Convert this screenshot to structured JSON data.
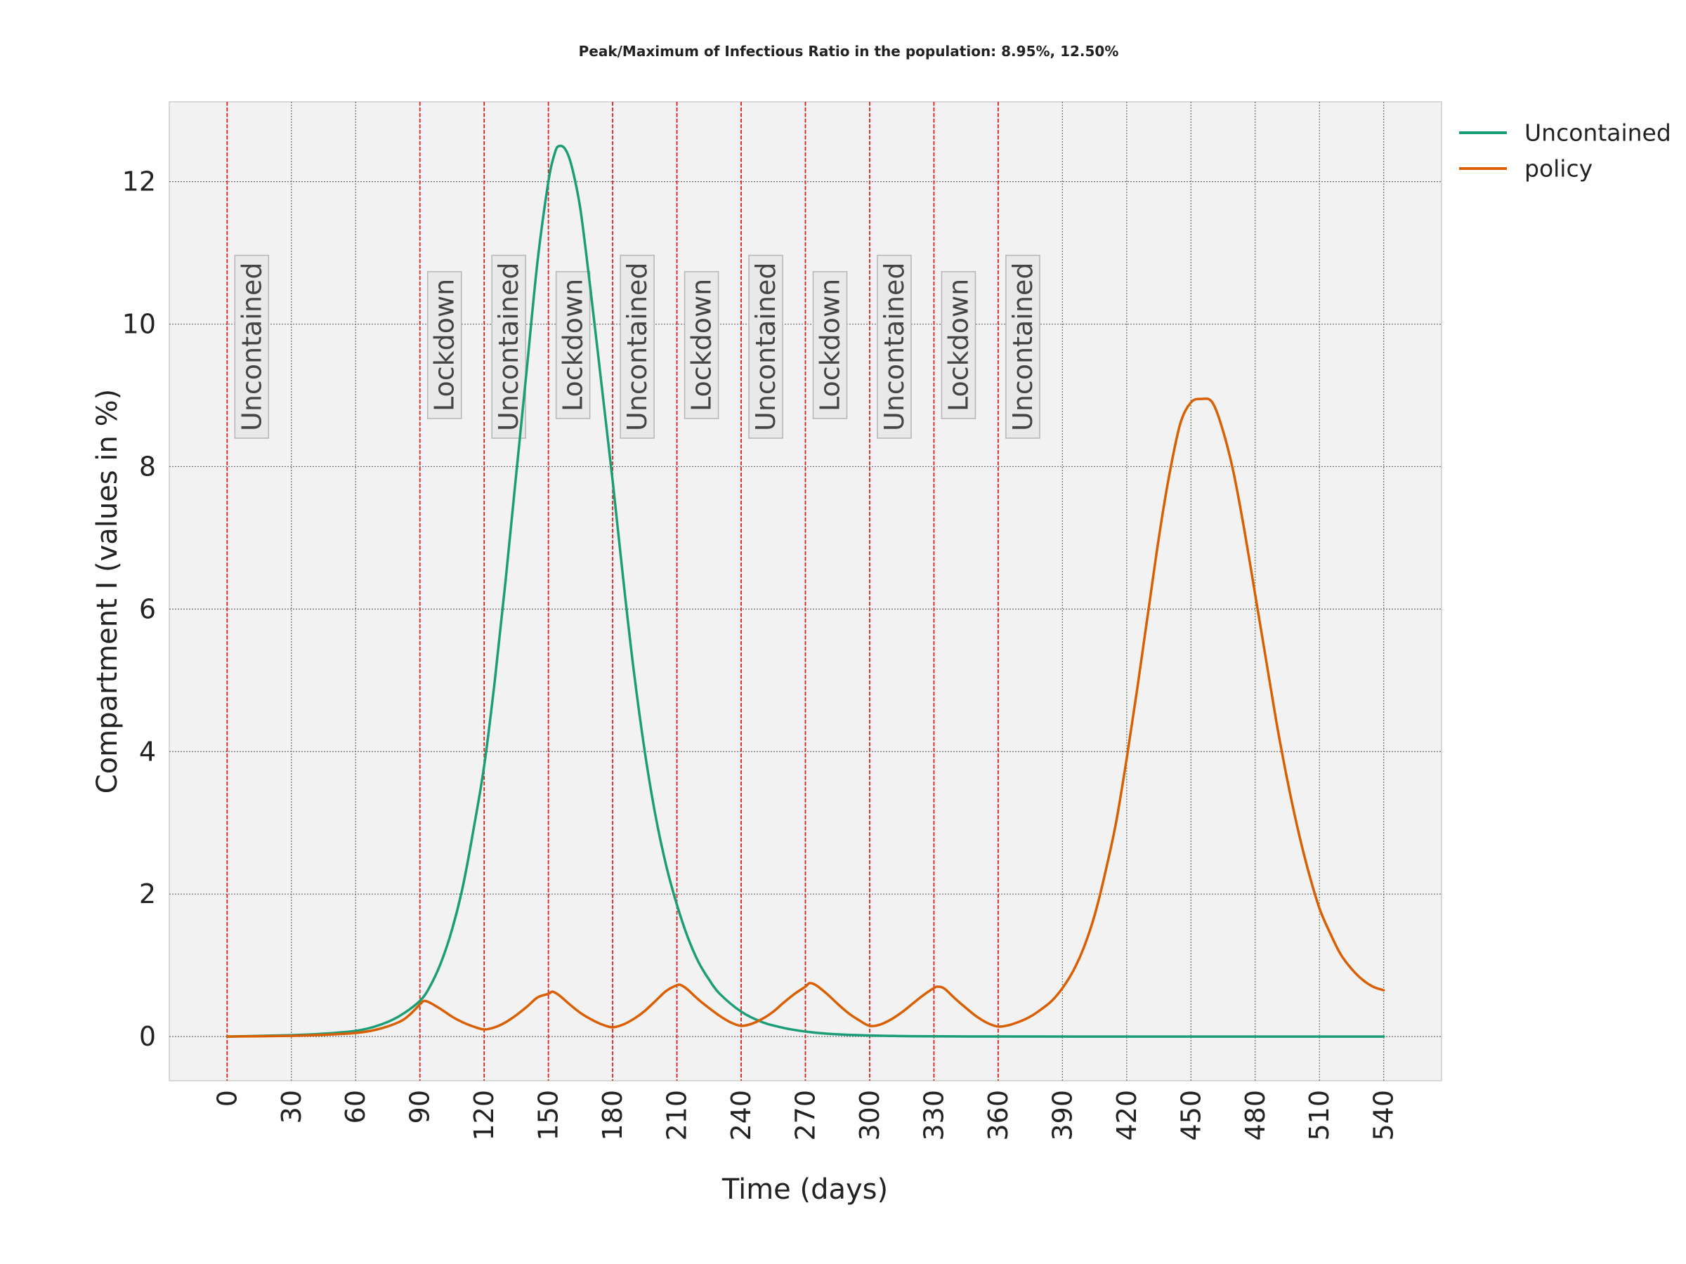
{
  "chart_data": {
    "type": "line",
    "title": "Peak/Maximum of Infectious Ratio in the population: 8.95%, 12.50%",
    "xlabel": "Time (days)",
    "ylabel": "Compartment I (values in %)",
    "xlim": [
      -27,
      567
    ],
    "ylim": [
      -0.62,
      13.12
    ],
    "xticks": [
      0,
      30,
      60,
      90,
      120,
      150,
      180,
      210,
      240,
      270,
      300,
      330,
      360,
      390,
      420,
      450,
      480,
      510,
      540
    ],
    "xtick_labels": [
      "0",
      "30",
      "60",
      "90",
      "120",
      "150",
      "180",
      "210",
      "240",
      "270",
      "300",
      "330",
      "360",
      "390",
      "420",
      "450",
      "480",
      "510",
      "540"
    ],
    "yticks": [
      0,
      2,
      4,
      6,
      8,
      10,
      12
    ],
    "ytick_labels": [
      "0",
      "2",
      "4",
      "6",
      "8",
      "10",
      "12"
    ],
    "grid": true,
    "legend_position": "outside-top-right",
    "background_color": "#f2f2f2",
    "phase_line_color": "#e0201a",
    "phases": [
      {
        "x": 0,
        "label": "Uncontained"
      },
      {
        "x": 90,
        "label": "Lockdown"
      },
      {
        "x": 120,
        "label": "Uncontained"
      },
      {
        "x": 150,
        "label": "Lockdown"
      },
      {
        "x": 180,
        "label": "Uncontained"
      },
      {
        "x": 210,
        "label": "Lockdown"
      },
      {
        "x": 240,
        "label": "Uncontained"
      },
      {
        "x": 270,
        "label": "Lockdown"
      },
      {
        "x": 300,
        "label": "Uncontained"
      },
      {
        "x": 330,
        "label": "Lockdown"
      },
      {
        "x": 360,
        "label": "Uncontained"
      }
    ],
    "series": [
      {
        "name": "Uncontained",
        "color": "#1b9e77",
        "x": [
          0,
          30,
          45,
          60,
          70,
          80,
          90,
          95,
          100,
          105,
          110,
          115,
          120,
          125,
          130,
          135,
          140,
          145,
          150,
          153,
          155,
          158,
          161,
          165,
          170,
          175,
          180,
          185,
          190,
          195,
          200,
          205,
          210,
          215,
          220,
          225,
          230,
          240,
          250,
          260,
          270,
          280,
          290,
          300,
          320,
          340,
          360,
          400,
          450,
          500,
          540
        ],
        "y": [
          0.0,
          0.02,
          0.04,
          0.08,
          0.15,
          0.28,
          0.5,
          0.72,
          1.05,
          1.5,
          2.1,
          2.9,
          3.8,
          5.0,
          6.4,
          7.9,
          9.4,
          10.9,
          12.0,
          12.4,
          12.5,
          12.45,
          12.2,
          11.6,
          10.4,
          9.1,
          7.8,
          6.4,
          5.1,
          4.0,
          3.1,
          2.4,
          1.85,
          1.4,
          1.05,
          0.8,
          0.6,
          0.35,
          0.2,
          0.12,
          0.07,
          0.04,
          0.025,
          0.015,
          0.005,
          0.002,
          0.001,
          0.0,
          0.0,
          0.0,
          0.0
        ]
      },
      {
        "name": "policy",
        "color": "#d95f02",
        "x": [
          0,
          30,
          45,
          60,
          70,
          80,
          85,
          90,
          92,
          95,
          100,
          105,
          110,
          115,
          120,
          125,
          130,
          135,
          140,
          145,
          150,
          152,
          155,
          160,
          165,
          170,
          175,
          180,
          185,
          190,
          195,
          200,
          205,
          210,
          212,
          215,
          220,
          225,
          230,
          235,
          240,
          245,
          250,
          255,
          260,
          265,
          270,
          272,
          275,
          280,
          285,
          290,
          295,
          300,
          305,
          310,
          315,
          320,
          325,
          330,
          332,
          335,
          340,
          345,
          350,
          355,
          360,
          365,
          370,
          375,
          380,
          385,
          390,
          395,
          400,
          405,
          410,
          415,
          420,
          425,
          430,
          435,
          440,
          445,
          450,
          455,
          460,
          465,
          470,
          475,
          480,
          485,
          490,
          495,
          500,
          505,
          510,
          515,
          520,
          525,
          530,
          535,
          540
        ],
        "y": [
          0.0,
          0.01,
          0.025,
          0.05,
          0.1,
          0.2,
          0.3,
          0.45,
          0.5,
          0.47,
          0.38,
          0.28,
          0.2,
          0.14,
          0.1,
          0.13,
          0.2,
          0.3,
          0.42,
          0.55,
          0.6,
          0.63,
          0.58,
          0.45,
          0.33,
          0.24,
          0.17,
          0.13,
          0.17,
          0.25,
          0.36,
          0.5,
          0.64,
          0.72,
          0.72,
          0.66,
          0.52,
          0.4,
          0.29,
          0.2,
          0.15,
          0.18,
          0.25,
          0.35,
          0.48,
          0.6,
          0.7,
          0.75,
          0.72,
          0.6,
          0.46,
          0.33,
          0.23,
          0.15,
          0.17,
          0.24,
          0.34,
          0.46,
          0.58,
          0.68,
          0.7,
          0.67,
          0.53,
          0.4,
          0.28,
          0.19,
          0.14,
          0.16,
          0.21,
          0.28,
          0.38,
          0.5,
          0.68,
          0.92,
          1.25,
          1.7,
          2.3,
          3.0,
          3.9,
          4.9,
          5.95,
          7.0,
          7.9,
          8.6,
          8.9,
          8.95,
          8.9,
          8.5,
          7.9,
          7.1,
          6.2,
          5.3,
          4.4,
          3.6,
          2.9,
          2.3,
          1.8,
          1.45,
          1.15,
          0.95,
          0.8,
          0.7,
          0.65
        ]
      }
    ]
  }
}
